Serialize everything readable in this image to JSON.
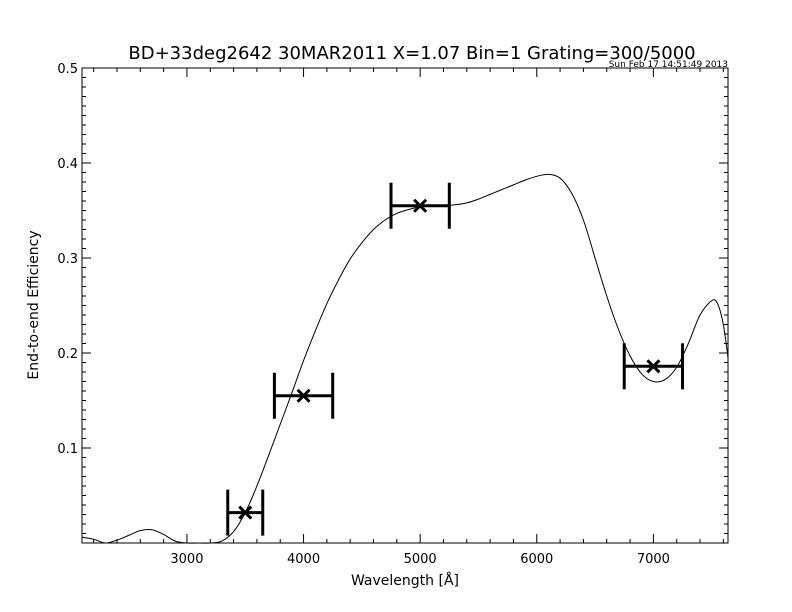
{
  "chart_data": {
    "type": "line",
    "title": "BD+33deg2642 30MAR2011 X=1.07 Bin=1 Grating=300/5000",
    "timestamp": "Sun Feb 17 14:51:49 2013",
    "xlabel": "Wavelength [Å]",
    "ylabel": "End-to-end Efficiency",
    "xlim": [
      2100,
      7640
    ],
    "ylim": [
      0.0,
      0.5
    ],
    "x_ticks": [
      3000,
      4000,
      5000,
      6000,
      7000
    ],
    "x_tick_labels": [
      "3000",
      "4000",
      "5000",
      "6000",
      "7000"
    ],
    "y_ticks": [
      0.1,
      0.2,
      0.3,
      0.4,
      0.5
    ],
    "y_tick_labels": [
      "0.1",
      "0.2",
      "0.3",
      "0.4",
      "0.5"
    ],
    "grid": false,
    "series": [
      {
        "style": "thin-line",
        "x": [
          2100,
          2200,
          2300,
          2400,
          2500,
          2600,
          2700,
          2800,
          2900,
          3000,
          3100,
          3200,
          3300,
          3400,
          3500,
          3600,
          3700,
          3800,
          3900,
          4000,
          4100,
          4200,
          4300,
          4400,
          4500,
          4600,
          4700,
          4800,
          4900,
          5000,
          5100,
          5200,
          5300,
          5400,
          5500,
          5600,
          5700,
          5800,
          5900,
          6000,
          6100,
          6200,
          6300,
          6400,
          6500,
          6600,
          6700,
          6800,
          6900,
          7000,
          7100,
          7200,
          7300,
          7400,
          7500,
          7550,
          7600,
          7640
        ],
        "y": [
          0.006,
          0.004,
          0.0,
          0.003,
          0.008,
          0.013,
          0.014,
          0.009,
          0.002,
          0.0,
          0.0,
          0.0,
          0.002,
          0.012,
          0.032,
          0.06,
          0.092,
          0.125,
          0.158,
          0.192,
          0.223,
          0.252,
          0.277,
          0.299,
          0.316,
          0.33,
          0.34,
          0.347,
          0.351,
          0.354,
          0.355,
          0.355,
          0.356,
          0.358,
          0.362,
          0.367,
          0.372,
          0.377,
          0.382,
          0.386,
          0.388,
          0.384,
          0.368,
          0.34,
          0.3,
          0.26,
          0.225,
          0.197,
          0.178,
          0.17,
          0.172,
          0.185,
          0.21,
          0.24,
          0.255,
          0.252,
          0.23,
          0.195
        ]
      },
      {
        "style": "x-markers-with-horizontal-error-bars",
        "x": [
          3500,
          4000,
          5000,
          7000
        ],
        "y": [
          0.032,
          0.155,
          0.355,
          0.186
        ],
        "x_error": [
          150,
          250,
          250,
          250
        ]
      }
    ]
  }
}
